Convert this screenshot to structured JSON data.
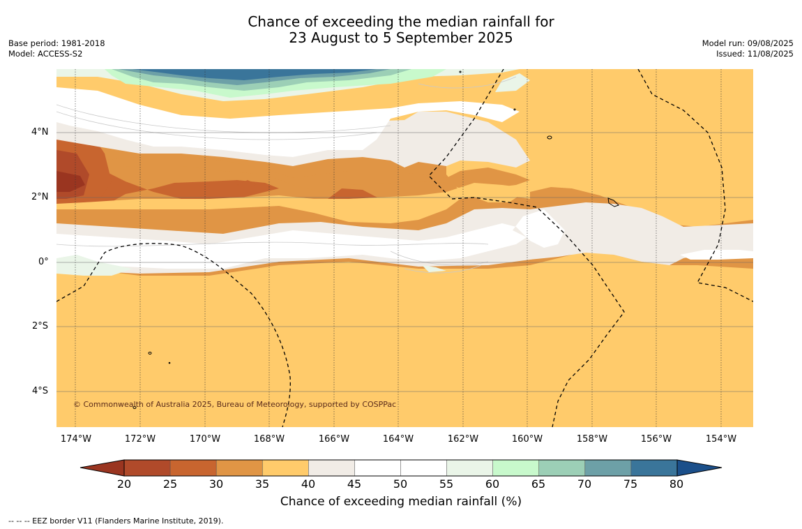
{
  "header": {
    "title_line1": "Chance of exceeding the median rainfall for",
    "title_line2": "23 August to 5 September 2025",
    "base_period": "Base period: 1981-2018",
    "model": "Model: ACCESS-S2",
    "model_run": "Model run: 09/08/2025",
    "issued": "Issued: 11/08/2025"
  },
  "map": {
    "copyright": "© Commonwealth of Australia 2025, Bureau of Meteorology, supported by COSPPac",
    "lon_labels": [
      "174°W",
      "172°W",
      "170°W",
      "168°W",
      "166°W",
      "164°W",
      "162°W",
      "160°W",
      "158°W",
      "156°W",
      "154°W"
    ],
    "lat_labels": [
      "4°N",
      "2°N",
      "0°",
      "2°S",
      "4°S"
    ]
  },
  "colorbar": {
    "ticks": [
      "20",
      "25",
      "30",
      "35",
      "40",
      "45",
      "50",
      "55",
      "60",
      "65",
      "70",
      "75",
      "80"
    ],
    "colors": [
      "#9a3520",
      "#b04a2a",
      "#c8652f",
      "#e09545",
      "#ffcb6b",
      "#f1ece6",
      "#ffffff",
      "#ffffff",
      "#eaf5e8",
      "#c8f9cc",
      "#9ccfb6",
      "#6da0a7",
      "#3a759a",
      "#1b4f8a"
    ],
    "title": "Chance of exceeding median rainfall (%)"
  },
  "footnote": "--  --  -- EEZ border V11 (Flanders Marine Institute, 2019)."
}
